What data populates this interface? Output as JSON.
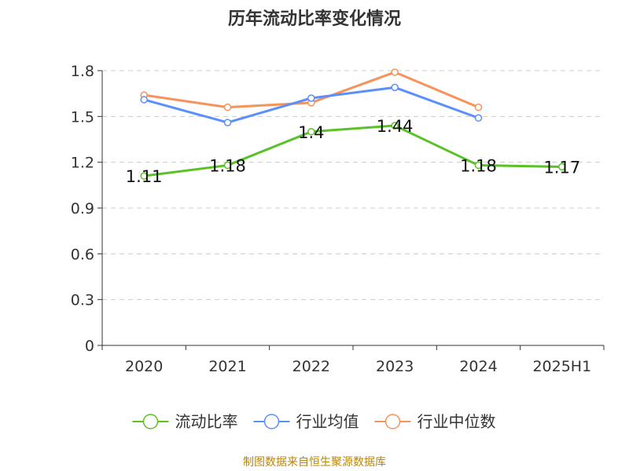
{
  "chart_data": {
    "type": "line",
    "title": "历年流动比率变化情况",
    "categories": [
      "2020",
      "2021",
      "2022",
      "2023",
      "2024",
      "2025H1"
    ],
    "ylim": [
      0,
      1.8
    ],
    "yticks": [
      "0",
      "0.3",
      "0.6",
      "0.9",
      "1.2",
      "1.5",
      "1.8"
    ],
    "grid": true,
    "legend_position": "bottom",
    "series": [
      {
        "name": "流动比率",
        "values": [
          1.11,
          1.18,
          1.4,
          1.44,
          1.18,
          1.17
        ],
        "labels": [
          "1.11",
          "1.18",
          "1.4",
          "1.44",
          "1.18",
          "1.17"
        ],
        "color": "#5ac227"
      },
      {
        "name": "行业均值",
        "values": [
          1.61,
          1.46,
          1.62,
          1.69,
          1.49,
          null
        ],
        "color": "#5b8ff9"
      },
      {
        "name": "行业中位数",
        "values": [
          1.64,
          1.56,
          1.59,
          1.79,
          1.56,
          null
        ],
        "color": "#f6925a"
      }
    ],
    "source": "制图数据来自恒生聚源数据库"
  }
}
